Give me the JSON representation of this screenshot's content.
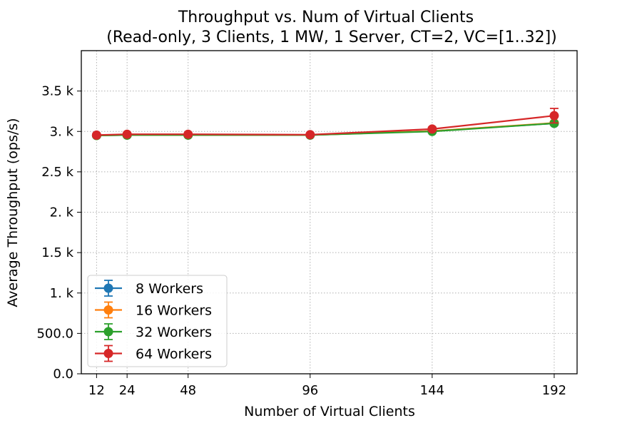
{
  "chart_data": {
    "type": "line",
    "title": "Throughput vs. Num of Virtual Clients",
    "subtitle": "(Read-only, 3 Clients, 1 MW, 1 Server, CT=2, VC=[1..32])",
    "xlabel": "Number of Virtual Clients",
    "ylabel": "Average Throughput (ops/s)",
    "xlim": [
      6,
      201
    ],
    "ylim": [
      0,
      4000
    ],
    "x_ticks": [
      12,
      24,
      48,
      96,
      144,
      192
    ],
    "y_ticks": [
      {
        "value": 0,
        "label": "0.0"
      },
      {
        "value": 500,
        "label": "500.0"
      },
      {
        "value": 1000,
        "label": "1. k"
      },
      {
        "value": 1500,
        "label": "1.5 k"
      },
      {
        "value": 2000,
        "label": "2. k"
      },
      {
        "value": 2500,
        "label": "2.5 k"
      },
      {
        "value": 3000,
        "label": "3. k"
      },
      {
        "value": 3500,
        "label": "3.5 k"
      }
    ],
    "grid": true,
    "legend_position": "lower-left",
    "x": [
      12,
      24,
      48,
      96,
      144,
      192
    ],
    "series": [
      {
        "name": "8 Workers",
        "color": "#1f77b4",
        "values": [
          2950,
          2955,
          2955,
          2955,
          3005,
          3100
        ],
        "errors": [
          10,
          10,
          10,
          10,
          15,
          20
        ]
      },
      {
        "name": "16 Workers",
        "color": "#ff7f0e",
        "values": [
          2950,
          2955,
          2955,
          2955,
          3005,
          3105
        ],
        "errors": [
          10,
          10,
          10,
          10,
          15,
          20
        ]
      },
      {
        "name": "32 Workers",
        "color": "#2ca02c",
        "values": [
          2950,
          2955,
          2955,
          2955,
          3000,
          3100
        ],
        "errors": [
          10,
          10,
          10,
          10,
          15,
          20
        ]
      },
      {
        "name": "64 Workers",
        "color": "#d62728",
        "values": [
          2955,
          2965,
          2965,
          2960,
          3030,
          3195
        ],
        "errors": [
          10,
          10,
          10,
          10,
          20,
          90
        ]
      }
    ]
  }
}
